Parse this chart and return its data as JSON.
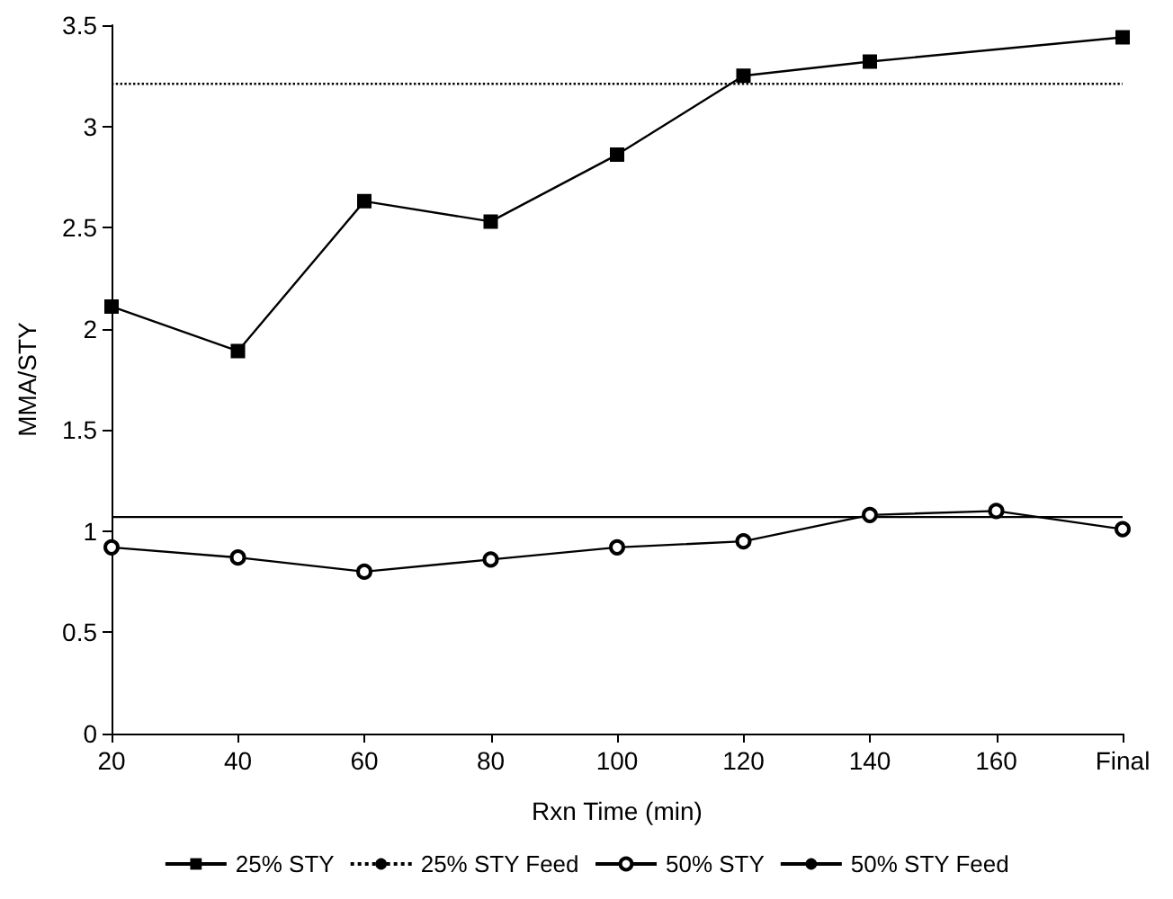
{
  "chart_data": {
    "type": "line",
    "xlabel": "Rxn Time (min)",
    "ylabel": "MMA/STY",
    "categories": [
      "20",
      "40",
      "60",
      "80",
      "100",
      "120",
      "140",
      "160",
      "Final"
    ],
    "series": [
      {
        "name": "25% STY",
        "color": "#000000",
        "marker": "square",
        "line_style": "solid",
        "values": [
          2.11,
          1.89,
          2.63,
          2.53,
          2.86,
          3.25,
          3.32,
          null,
          3.44
        ]
      },
      {
        "name": "25% STY Feed",
        "color": "#000000",
        "marker": "none",
        "line_style": "dotted",
        "values": [
          3.21,
          3.21,
          3.21,
          3.21,
          3.21,
          3.21,
          3.21,
          3.21,
          3.21
        ]
      },
      {
        "name": "50% STY",
        "color": "#000000",
        "marker": "circle",
        "line_style": "solid",
        "values": [
          0.92,
          0.87,
          0.8,
          0.86,
          0.92,
          0.95,
          1.08,
          1.1,
          1.01
        ]
      },
      {
        "name": "50% STY Feed",
        "color": "#000000",
        "marker": "none",
        "line_style": "solid",
        "values": [
          1.07,
          1.07,
          1.07,
          1.07,
          1.07,
          1.07,
          1.07,
          1.07,
          1.07
        ]
      }
    ],
    "ylim": [
      0,
      3.5
    ],
    "yticks": [
      0,
      0.5,
      1,
      1.5,
      2,
      2.5,
      3,
      3.5
    ],
    "grid": false,
    "legend": "bottom"
  }
}
